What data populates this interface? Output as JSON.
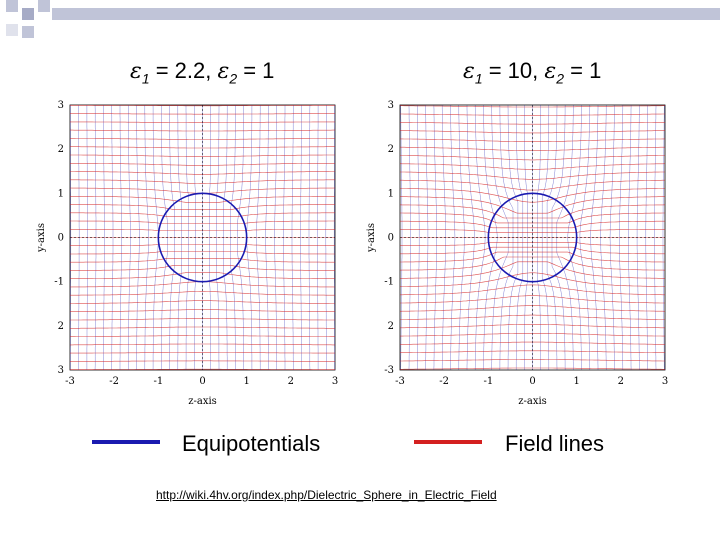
{
  "header": {
    "accent_color": "#c0c4d8",
    "accent_dark": "#a6abc6"
  },
  "panels": [
    {
      "title": {
        "eps1_sym": "ε",
        "eps1_sub": "1",
        "eps1_val": " = 2.2, ",
        "eps2_sym": "ε",
        "eps2_sub": "2",
        "eps2_val": " = 1"
      },
      "xlabel": "z-axis",
      "ylabel": "y-axis",
      "x_ticks": [
        "-3",
        "-2",
        "-1",
        "0",
        "1",
        "2",
        "3"
      ],
      "y_ticks": [
        "3",
        "2",
        "1",
        "0",
        "-1",
        "2",
        "3"
      ],
      "epsilon_ratio": 2.2,
      "sphere_radius": 1,
      "axis_range": [
        -3,
        3
      ]
    },
    {
      "title": {
        "eps1_sym": "ε",
        "eps1_sub": "1",
        "eps1_val": " = 10, ",
        "eps2_sym": "ε",
        "eps2_sub": "2",
        "eps2_val": " = 1"
      },
      "xlabel": "z-axis",
      "ylabel": "y-axis",
      "x_ticks": [
        "-3",
        "-2",
        "-1",
        "0",
        "1",
        "2",
        "3"
      ],
      "y_ticks": [
        "3",
        "2",
        "1",
        "0",
        "-1",
        "2",
        "-3"
      ],
      "epsilon_ratio": 10,
      "sphere_radius": 1,
      "axis_range": [
        -3,
        3
      ]
    }
  ],
  "legend": {
    "equipotentials": {
      "label": "Equipotentials",
      "color": "#1a1ab0"
    },
    "field_lines": {
      "label": "Field lines",
      "color": "#d42020"
    }
  },
  "source_url": "http://wiki.4hv.org/index.php/Dielectric_Sphere_in_Electric_Field"
}
